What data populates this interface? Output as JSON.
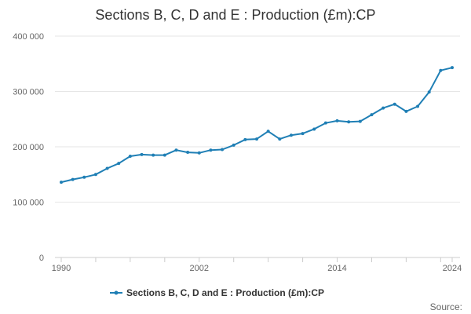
{
  "chart_data": {
    "type": "line",
    "title": "Sections B, C, D and E : Production (£m):CP",
    "xlabel": "",
    "ylabel": "",
    "xlim": [
      1990,
      2024
    ],
    "ylim": [
      0,
      400000
    ],
    "x_ticks": [
      1990,
      2002,
      2014,
      2024
    ],
    "y_ticks": [
      0,
      100000,
      200000,
      300000,
      400000
    ],
    "y_tick_labels": [
      "0",
      "100 000",
      "200 000",
      "300 000",
      "400 000"
    ],
    "grid": "horizontal",
    "legend_position": "bottom",
    "series": [
      {
        "name": "Sections B, C, D and E : Production (£m):CP",
        "color": "#1f7fb5",
        "x": [
          1990,
          1991,
          1992,
          1993,
          1994,
          1995,
          1996,
          1997,
          1998,
          1999,
          2000,
          2001,
          2002,
          2003,
          2004,
          2005,
          2006,
          2007,
          2008,
          2009,
          2010,
          2011,
          2012,
          2013,
          2014,
          2015,
          2016,
          2017,
          2018,
          2019,
          2020,
          2021,
          2022,
          2023,
          2024
        ],
        "values": [
          136000,
          141000,
          145000,
          150000,
          161000,
          170000,
          183000,
          186000,
          185000,
          185000,
          194000,
          190000,
          189000,
          194000,
          195000,
          203000,
          213000,
          214000,
          228000,
          214000,
          221000,
          224000,
          232000,
          243000,
          247000,
          245000,
          246000,
          258000,
          270000,
          277000,
          264000,
          273000,
          299000,
          338000,
          343000
        ]
      }
    ]
  },
  "source_label": "Source:",
  "colors": {
    "line": "#1f7fb5",
    "grid": "#e6e6e6",
    "axis": "#cccccc"
  }
}
